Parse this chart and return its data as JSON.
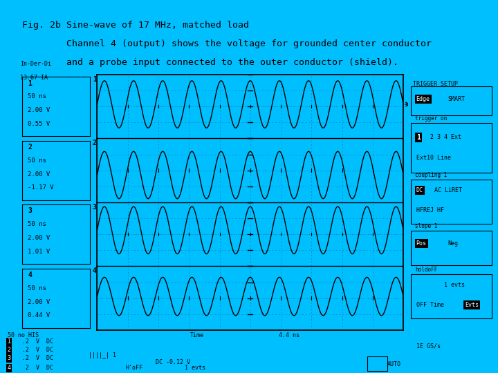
{
  "bg_color": "#00BFFF",
  "title_lines": [
    "Fig. 2b Sine-wave of 17 MHz, matched load",
    "        Channel 4 (output) shows the voltage for grounded center conductor",
    "        and a probe input connected to the outer conductor (shield)."
  ],
  "title_fontsize": 9.5,
  "title_color": "black",
  "num_channels": 4,
  "num_cycles": 10.5,
  "points": 3000,
  "channel_labels": [
    "1",
    "2",
    "3",
    "4"
  ],
  "channel_offsets": [
    0.55,
    -1.17,
    1.01,
    0.44
  ],
  "channel_amplitudes": [
    1.85,
    1.85,
    1.85,
    1.5
  ],
  "time_div": "50 ns",
  "volt_div": "2.00 V",
  "wave_color": "black",
  "grid_dark": "#0077AA",
  "scope_header_text1": "In-Der-Di",
  "scope_header_text2": "13.67 IA",
  "trigger_setup": "TRIGGER SETUP",
  "edge_label": "Edge",
  "smart_label": "SMART",
  "trig_on_label": "trigger on",
  "trig_ch_highlighted": "1",
  "trig_ch_rest": "2 3 4 Ext",
  "ext10_line": "Ext10 Line",
  "coupling_label": "coupling 1",
  "dc_label": "DC",
  "ac_liret": "AC LiRET",
  "hfrej": "HFREJ HF",
  "slope_label": "slope 1",
  "pos_label": "Pos",
  "neg_label": "Neg",
  "holdoff_label": "holdoFF",
  "holdoff_evts": "1 evts",
  "off_time": "OFF Time",
  "evts_label": "Evts",
  "bottom_50no": "50 no HIS",
  "bottom_time_lbl": "Time",
  "bottom_time_val": "4.4 ns",
  "bottom_rate": "1E GS/s",
  "bottom_auto": "AUTO",
  "bottom_ch_labels": [
    "1",
    "2",
    "3",
    "4"
  ],
  "bottom_ch_info": [
    ".2  V  DC",
    ".2  V  DC",
    ".2  V  DC",
    " 2  V  DC"
  ],
  "bottom_dc_val": "DC -0.12 V",
  "bottom_evts": "1 evts",
  "bottom_hoff": "H'oFF"
}
